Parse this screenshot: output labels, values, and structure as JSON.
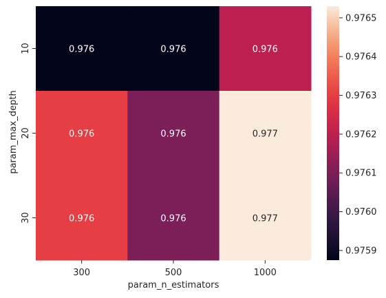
{
  "chart_data": {
    "type": "heatmap",
    "title": "",
    "xlabel": "param_n_estimators",
    "ylabel": "param_max_depth",
    "x_categories": [
      "300",
      "500",
      "1000"
    ],
    "y_categories": [
      "10",
      "20",
      "30"
    ],
    "values": [
      [
        0.975875,
        0.975875,
        0.9762
      ],
      [
        0.9763,
        0.9761,
        0.97653
      ],
      [
        0.9763,
        0.9761,
        0.97653
      ]
    ],
    "cell_labels": [
      [
        "0.976",
        "0.976",
        "0.976"
      ],
      [
        "0.976",
        "0.976",
        "0.977"
      ],
      [
        "0.976",
        "0.976",
        "0.977"
      ]
    ],
    "colorbar": {
      "min": 0.975875,
      "max": 0.97653,
      "ticks": [
        0.9759,
        0.976,
        0.9761,
        0.9762,
        0.9763,
        0.9764,
        0.9765
      ],
      "tick_labels": [
        "0.9759",
        "0.9760",
        "0.9761",
        "0.9762",
        "0.9763",
        "0.9764",
        "0.9765"
      ]
    },
    "colormap": "rocket"
  }
}
